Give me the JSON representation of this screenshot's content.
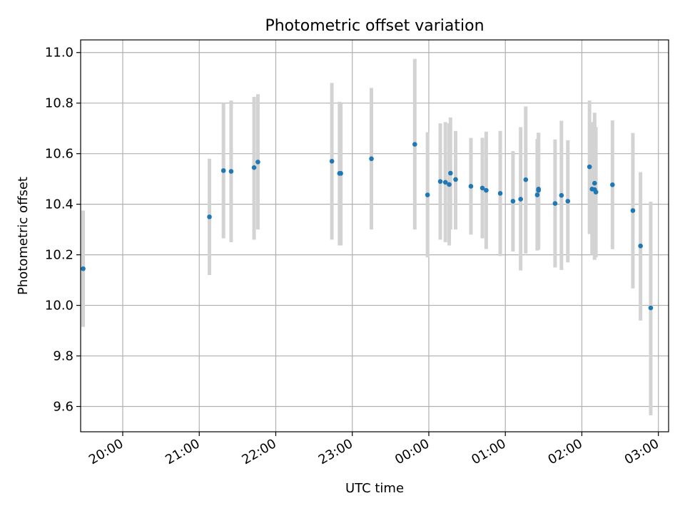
{
  "chart_data": {
    "type": "scatter",
    "title": "Photometric offset variation",
    "xlabel": "UTC time",
    "ylabel": "Photometric offset",
    "x_tick_labels": [
      "20:00",
      "21:00",
      "22:00",
      "23:00",
      "00:00",
      "01:00",
      "02:00",
      "03:00"
    ],
    "y_tick_labels": [
      "9.6",
      "9.8",
      "10.0",
      "10.2",
      "10.4",
      "10.6",
      "10.8",
      "11.0"
    ],
    "ylim": [
      9.5,
      11.05
    ],
    "xlim": [
      "19:27",
      "03:08"
    ],
    "grid": true,
    "colors": {
      "points": "#1f77b4",
      "error_bars": "#d3d3d3",
      "grid": "#b0b0b0"
    },
    "points": [
      {
        "time": "19:29",
        "y": 10.145,
        "err_low": 9.915,
        "err_high": 10.375
      },
      {
        "time": "21:08",
        "y": 10.35,
        "err_low": 10.12,
        "err_high": 10.58
      },
      {
        "time": "21:19",
        "y": 10.533,
        "err_low": 10.265,
        "err_high": 10.8
      },
      {
        "time": "21:25",
        "y": 10.53,
        "err_low": 10.25,
        "err_high": 10.81
      },
      {
        "time": "21:43",
        "y": 10.545,
        "err_low": 10.26,
        "err_high": 10.825
      },
      {
        "time": "21:46",
        "y": 10.567,
        "err_low": 10.3,
        "err_high": 10.835
      },
      {
        "time": "22:44",
        "y": 10.57,
        "err_low": 10.26,
        "err_high": 10.88
      },
      {
        "time": "22:50",
        "y": 10.522,
        "err_low": 10.237,
        "err_high": 10.805
      },
      {
        "time": "22:51",
        "y": 10.522,
        "err_low": 10.237,
        "err_high": 10.8
      },
      {
        "time": "23:15",
        "y": 10.58,
        "err_low": 10.3,
        "err_high": 10.86
      },
      {
        "time": "23:49",
        "y": 10.637,
        "err_low": 10.3,
        "err_high": 10.975
      },
      {
        "time": "23:59",
        "y": 10.437,
        "err_low": 10.19,
        "err_high": 10.685
      },
      {
        "time": "00:09",
        "y": 10.49,
        "err_low": 10.26,
        "err_high": 10.72
      },
      {
        "time": "00:13",
        "y": 10.487,
        "err_low": 10.25,
        "err_high": 10.725
      },
      {
        "time": "00:16",
        "y": 10.478,
        "err_low": 10.237,
        "err_high": 10.72
      },
      {
        "time": "00:17",
        "y": 10.523,
        "err_low": 10.3,
        "err_high": 10.743
      },
      {
        "time": "00:21",
        "y": 10.498,
        "err_low": 10.3,
        "err_high": 10.69
      },
      {
        "time": "00:33",
        "y": 10.471,
        "err_low": 10.28,
        "err_high": 10.662
      },
      {
        "time": "00:42",
        "y": 10.464,
        "err_low": 10.265,
        "err_high": 10.663
      },
      {
        "time": "00:45",
        "y": 10.455,
        "err_low": 10.223,
        "err_high": 10.687
      },
      {
        "time": "00:56",
        "y": 10.443,
        "err_low": 10.195,
        "err_high": 10.69
      },
      {
        "time": "01:06",
        "y": 10.412,
        "err_low": 10.213,
        "err_high": 10.61
      },
      {
        "time": "01:12",
        "y": 10.42,
        "err_low": 10.138,
        "err_high": 10.705
      },
      {
        "time": "01:16",
        "y": 10.497,
        "err_low": 10.205,
        "err_high": 10.787
      },
      {
        "time": "01:25",
        "y": 10.437,
        "err_low": 10.217,
        "err_high": 10.658
      },
      {
        "time": "01:26",
        "y": 10.46,
        "err_low": 10.22,
        "err_high": 10.683
      },
      {
        "time": "01:26",
        "y": 10.455,
        "err_low": 10.228,
        "err_high": 10.682
      },
      {
        "time": "01:39",
        "y": 10.403,
        "err_low": 10.15,
        "err_high": 10.656
      },
      {
        "time": "01:44",
        "y": 10.435,
        "err_low": 10.14,
        "err_high": 10.73
      },
      {
        "time": "01:49",
        "y": 10.412,
        "err_low": 10.17,
        "err_high": 10.653
      },
      {
        "time": "02:06",
        "y": 10.548,
        "err_low": 10.282,
        "err_high": 10.81
      },
      {
        "time": "02:08",
        "y": 10.46,
        "err_low": 10.2,
        "err_high": 10.725
      },
      {
        "time": "02:10",
        "y": 10.483,
        "err_low": 10.2,
        "err_high": 10.762
      },
      {
        "time": "02:10",
        "y": 10.458,
        "err_low": 10.18,
        "err_high": 10.735
      },
      {
        "time": "02:11",
        "y": 10.448,
        "err_low": 10.19,
        "err_high": 10.705
      },
      {
        "time": "02:24",
        "y": 10.477,
        "err_low": 10.222,
        "err_high": 10.732
      },
      {
        "time": "02:40",
        "y": 10.375,
        "err_low": 10.067,
        "err_high": 10.682
      },
      {
        "time": "02:46",
        "y": 10.235,
        "err_low": 9.94,
        "err_high": 10.527
      },
      {
        "time": "02:54",
        "y": 9.99,
        "err_low": 9.565,
        "err_high": 10.41
      }
    ]
  }
}
